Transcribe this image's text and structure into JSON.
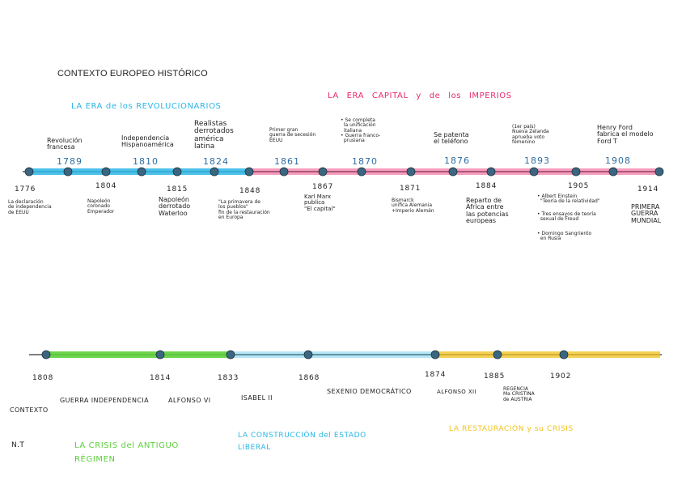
{
  "title": "CONTEXTO EUROPEO HISTÓRICO",
  "colors": {
    "blue_era": "#2bb6e6",
    "pink_era": "#e8276f",
    "green_era": "#5ccf3a",
    "yellow_era": "#f0c21c",
    "node": "#3b6680",
    "year_blue": "#2f6ea3"
  },
  "timeline1": {
    "eras": {
      "revoluciones": "LA ERA de los REVOLUCIONARIOS",
      "capital": "LA ERA CAPITAL y de los IMPERIOS"
    },
    "above": {
      "y1789": "1789",
      "l1789": "Revolución\nfrancesa",
      "y1810": "1810",
      "l1810": "Independencia\nHispanoamérica",
      "y1824": "1824",
      "l1824": "Realistas\nderrotados\namérica\nlatina",
      "y1861": "1861",
      "l1861": "Primer gran\nguerra de secesión\nEEUU",
      "y1870": "1870",
      "l1870": "• Se completa\n  la unificación\n  italiana\n• Guerra franco-\n  prusiana",
      "y1876": "1876",
      "l1876": "Se patenta\nel teléfono",
      "y1893": "1893",
      "l1893": "(1er país)\nNueva Zelanda\naprueba voto\nfemenino",
      "y1908": "1908",
      "l1908": "Henry Ford\nfabrica el modelo\nFord T"
    },
    "below": {
      "y1776": "1776",
      "l1776": "La declaración\nde independencia\nde EEUU",
      "y1804": "1804",
      "l1804": "Napoleón\ncoronado\nEmperador",
      "y1815": "1815",
      "l1815": "Napoleón\nderrotado\nWaterloo",
      "y1848": "1848",
      "l1848": "\"La primavera de\nlos pueblos\"\nfin de la restauración\nen Europa",
      "y1867": "1867",
      "l1867": "Karl Marx\npublica\n\"El capital\"",
      "y1871": "1871",
      "l1871": "Bismarck\nunifica Alemania\n+Imperio Alemán",
      "y1884": "1884",
      "l1884": "Reparto de\nÁfrica entre\nlas potencias\neuropeas",
      "y1905": "1905",
      "l1905a": "• Albert Einstein\n  \"Teoría de la relatividad\"",
      "l1905b": "• Tres ensayos de teoría\n  sexual de Freud",
      "l1905c": "• Domingo Sangriento\n  en Rusia",
      "y1914": "1914",
      "l1914": "PRIMERA\nGUERRA\nMUNDIAL"
    }
  },
  "timeline2": {
    "years": {
      "y1808": "1808",
      "y1814": "1814",
      "y1833": "1833",
      "y1868": "1868",
      "y1874": "1874",
      "y1885": "1885",
      "y1902": "1902"
    },
    "periods": {
      "contexto": "CONTEXTO",
      "guerra": "GUERRA INDEPENDENCIA",
      "fernando": "ALFONSO VI",
      "isabel": "ISABEL II",
      "sexenio": "SEXENIO DEMOCRÁTICO",
      "alfonso12": "ALFONSO XII",
      "regencia": "REGENCIA\nMa CRISTINA\nde AUSTRIA"
    },
    "eras": {
      "nt": "N.T",
      "antiguo": "LA CRISIS del ANTIGUO\nRÉGIMEN",
      "estado": "LA CONSTRUCCIÓN del ESTADO\nLIBERAL",
      "restauracion": "LA RESTAURACIÓN y su CRISIS"
    }
  }
}
